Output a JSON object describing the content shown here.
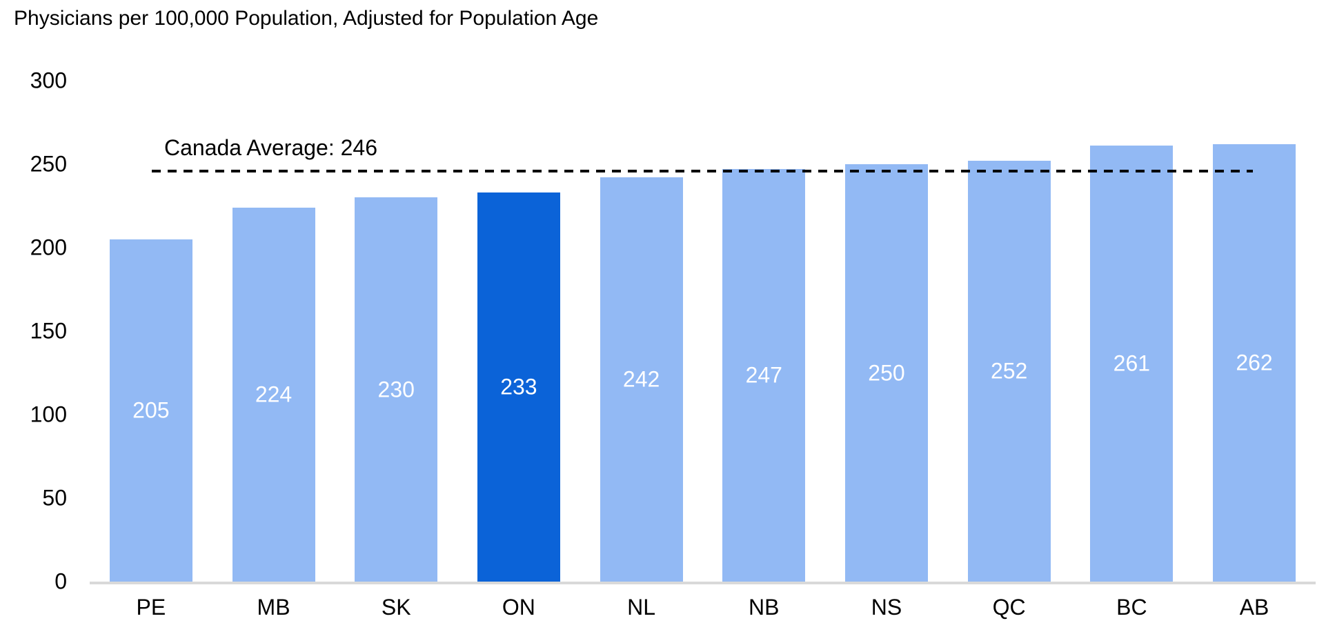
{
  "title": "Physicians per 100,000 Population, Adjusted for Population Age",
  "chart_data": {
    "type": "bar",
    "title": "Physicians per 100,000 Population, Adjusted for Population Age",
    "categories": [
      "PE",
      "MB",
      "SK",
      "ON",
      "NL",
      "NB",
      "NS",
      "QC",
      "BC",
      "AB"
    ],
    "values": [
      205,
      224,
      230,
      233,
      242,
      247,
      250,
      252,
      261,
      262
    ],
    "highlighted_category": "ON",
    "bar_labels_shown": true,
    "xlabel": "",
    "ylabel": "",
    "ylim": [
      0,
      300
    ],
    "yticks": [
      0,
      50,
      100,
      150,
      200,
      250,
      300
    ],
    "grid": false,
    "legend": "none",
    "reference_line": {
      "label": "Canada Average: 246",
      "value": 246
    },
    "colors": {
      "bar": "#92B9F4",
      "highlight": "#0B63D8",
      "axis_line": "#D9D9D9",
      "reference_line": "#000000",
      "bar_label_text": "#FFFFFF",
      "text": "#000000"
    }
  }
}
